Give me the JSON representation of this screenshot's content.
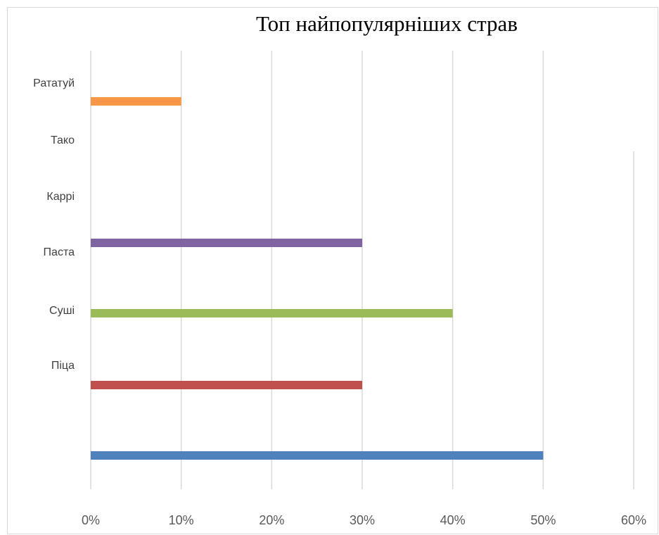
{
  "chart_data": {
    "type": "bar",
    "orientation": "horizontal",
    "title": "Топ найпопулярніших страв",
    "xlabel": "",
    "ylabel": "",
    "xlim": [
      0,
      0.6
    ],
    "x_ticks": [
      "0%",
      "10%",
      "20%",
      "30%",
      "40%",
      "50%",
      "60%"
    ],
    "grid": true,
    "categories": [
      "Рататуй",
      "Тако",
      "Каррі",
      "Паста",
      "Суші",
      "Піца",
      ""
    ],
    "values": [
      0.1,
      0,
      0,
      0.3,
      0.4,
      0.3,
      0.5
    ],
    "colors": [
      "#f79646",
      "#4bacc6",
      "#8064a2",
      "#8064a2",
      "#9bbb59",
      "#c0504d",
      "#4f81bd"
    ]
  }
}
